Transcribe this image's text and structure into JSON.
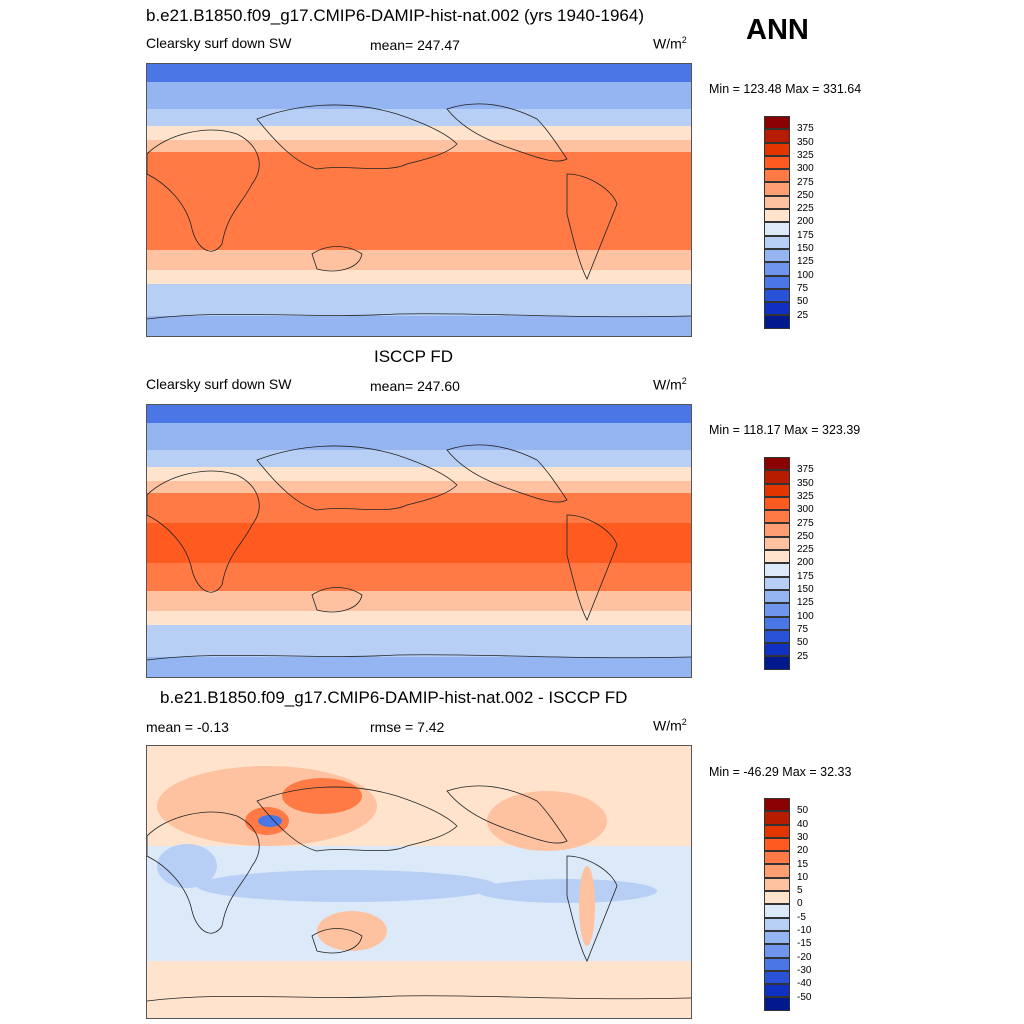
{
  "season": "ANN",
  "panels": [
    {
      "title": "b.e21.B1850.f09_g17.CMIP6-DAMIP-hist-nat.002 (yrs 1940-1964)",
      "left_label": "Clearsky surf down SW",
      "center_label": "mean= 247.47",
      "units": "W/m",
      "units_sup": "2",
      "minmax": "Min = 123.48 Max = 331.64",
      "colorbar": {
        "labels": [
          "375",
          "350",
          "325",
          "300",
          "275",
          "250",
          "225",
          "200",
          "175",
          "150",
          "125",
          "100",
          "75",
          "50",
          "25"
        ],
        "colors": [
          "#8b0000",
          "#b81c00",
          "#e33500",
          "#ff5a1f",
          "#ff7a45",
          "#ff9e72",
          "#ffc2a0",
          "#ffe3cc",
          "#dce9f9",
          "#b7cff5",
          "#94b4f2",
          "#6f96ec",
          "#4a76e6",
          "#2853d9",
          "#1030c4",
          "#001a8e"
        ]
      }
    },
    {
      "title": "ISCCP FD",
      "left_label": "Clearsky surf down SW",
      "center_label": "mean= 247.60",
      "units": "W/m",
      "units_sup": "2",
      "minmax": "Min = 118.17 Max = 323.39",
      "colorbar": {
        "labels": [
          "375",
          "350",
          "325",
          "300",
          "275",
          "250",
          "225",
          "200",
          "175",
          "150",
          "125",
          "100",
          "75",
          "50",
          "25"
        ],
        "colors": [
          "#8b0000",
          "#b81c00",
          "#e33500",
          "#ff5a1f",
          "#ff7a45",
          "#ff9e72",
          "#ffc2a0",
          "#ffe3cc",
          "#dce9f9",
          "#b7cff5",
          "#94b4f2",
          "#6f96ec",
          "#4a76e6",
          "#2853d9",
          "#1030c4",
          "#001a8e"
        ]
      }
    },
    {
      "title": "b.e21.B1850.f09_g17.CMIP6-DAMIP-hist-nat.002 - ISCCP FD",
      "left_label": "mean =  -0.13",
      "center_label": "rmse =   7.42",
      "units": "W/m",
      "units_sup": "2",
      "minmax": "Min = -46.29 Max =  32.33",
      "colorbar": {
        "labels": [
          "50",
          "40",
          "30",
          "20",
          "15",
          "10",
          "5",
          "0",
          "-5",
          "-10",
          "-15",
          "-20",
          "-30",
          "-40",
          "-50"
        ],
        "colors": [
          "#8b0000",
          "#b81c00",
          "#e33500",
          "#ff5a1f",
          "#ff7a45",
          "#ff9e72",
          "#ffc2a0",
          "#ffe3cc",
          "#dce9f9",
          "#b7cff5",
          "#94b4f2",
          "#6f96ec",
          "#4a76e6",
          "#2853d9",
          "#1030c4",
          "#001a8e"
        ]
      }
    }
  ],
  "field_colors": {
    "polar": "#4a76e6",
    "subpolar": "#94b4f2",
    "midlat_cool": "#b7cff5",
    "midlat": "#ffe3cc",
    "subtropic": "#ffc2a0",
    "tropic": "#ff7a45",
    "tropic_hot": "#ff5a1f",
    "diff_base": "#dce9f9",
    "diff_warm": "#ffc2a0",
    "diff_hot": "#ff7a45",
    "diff_cool": "#b7cff5",
    "diff_cold": "#4a76e6"
  }
}
